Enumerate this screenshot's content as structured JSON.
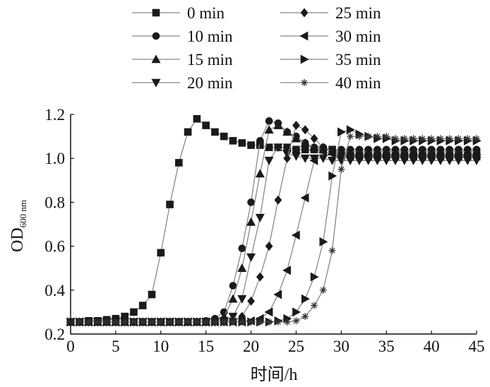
{
  "chart_data": {
    "type": "line",
    "xlabel": "时间/h",
    "ylabel_main": "OD",
    "ylabel_sub": "600 nm",
    "xlim": [
      0,
      45
    ],
    "ylim": [
      0.2,
      1.2
    ],
    "xticks": [
      "0",
      "5",
      "10",
      "15",
      "20",
      "25",
      "30",
      "35",
      "40",
      "45"
    ],
    "yticks": [
      "0.2",
      "0.4",
      "0.6",
      "0.8",
      "1.0",
      "1.2"
    ],
    "grid": false,
    "legend_position": "top",
    "x": [
      0,
      1,
      2,
      3,
      4,
      5,
      6,
      7,
      8,
      9,
      10,
      11,
      12,
      13,
      14,
      15,
      16,
      17,
      18,
      19,
      20,
      21,
      22,
      23,
      24,
      25,
      26,
      27,
      28,
      29,
      30,
      31,
      32,
      33,
      34,
      35,
      36,
      37,
      38,
      39,
      40,
      41,
      42,
      43,
      44,
      45
    ],
    "series": [
      {
        "name": "0 min",
        "marker": "square",
        "values": [
          0.255,
          0.255,
          0.26,
          0.26,
          0.265,
          0.27,
          0.28,
          0.3,
          0.33,
          0.38,
          0.57,
          0.79,
          0.98,
          1.12,
          1.18,
          1.15,
          1.12,
          1.1,
          1.08,
          1.07,
          1.06,
          1.06,
          1.05,
          1.05,
          1.05,
          1.04,
          1.04,
          1.04,
          1.04,
          1.04,
          1.03,
          1.03,
          1.03,
          1.03,
          1.03,
          1.03,
          1.03,
          1.03,
          1.03,
          1.03,
          1.03,
          1.03,
          1.03,
          1.03,
          1.03,
          1.03
        ]
      },
      {
        "name": "10 min",
        "marker": "circle",
        "values": [
          0.255,
          0.255,
          0.255,
          0.255,
          0.255,
          0.255,
          0.255,
          0.255,
          0.255,
          0.255,
          0.255,
          0.255,
          0.255,
          0.255,
          0.255,
          0.26,
          0.27,
          0.3,
          0.42,
          0.59,
          0.8,
          1.08,
          1.17,
          1.16,
          1.12,
          1.1,
          1.07,
          1.05,
          1.05,
          1.04,
          1.04,
          1.04,
          1.04,
          1.04,
          1.04,
          1.04,
          1.04,
          1.04,
          1.04,
          1.04,
          1.04,
          1.04,
          1.04,
          1.04,
          1.04,
          1.04
        ]
      },
      {
        "name": "15 min",
        "marker": "triangle-up",
        "values": [
          0.255,
          0.255,
          0.255,
          0.255,
          0.255,
          0.255,
          0.255,
          0.255,
          0.255,
          0.255,
          0.255,
          0.255,
          0.255,
          0.255,
          0.255,
          0.255,
          0.26,
          0.28,
          0.36,
          0.5,
          0.71,
          0.93,
          1.13,
          1.15,
          1.12,
          1.09,
          1.07,
          1.05,
          1.04,
          1.03,
          1.03,
          1.03,
          1.03,
          1.03,
          1.03,
          1.03,
          1.03,
          1.03,
          1.03,
          1.03,
          1.03,
          1.03,
          1.03,
          1.03,
          1.03,
          1.03
        ]
      },
      {
        "name": "20 min",
        "marker": "triangle-down",
        "values": [
          0.255,
          0.255,
          0.255,
          0.255,
          0.255,
          0.255,
          0.255,
          0.255,
          0.255,
          0.255,
          0.255,
          0.255,
          0.255,
          0.255,
          0.255,
          0.255,
          0.255,
          0.26,
          0.28,
          0.36,
          0.55,
          0.73,
          0.99,
          1.05,
          1.02,
          1.01,
          1.0,
          1.0,
          1.0,
          0.99,
          0.99,
          0.99,
          0.99,
          0.99,
          0.99,
          0.99,
          0.99,
          0.99,
          0.99,
          0.99,
          0.99,
          0.99,
          0.99,
          0.99,
          0.99,
          0.99
        ]
      },
      {
        "name": "25 min",
        "marker": "diamond",
        "values": [
          0.255,
          0.255,
          0.255,
          0.255,
          0.255,
          0.255,
          0.255,
          0.255,
          0.255,
          0.255,
          0.255,
          0.255,
          0.255,
          0.255,
          0.255,
          0.255,
          0.255,
          0.255,
          0.26,
          0.28,
          0.35,
          0.46,
          0.6,
          0.81,
          1.0,
          1.15,
          1.13,
          1.09,
          1.05,
          1.03,
          1.02,
          1.02,
          1.02,
          1.02,
          1.02,
          1.02,
          1.02,
          1.02,
          1.02,
          1.02,
          1.02,
          1.02,
          1.02,
          1.02,
          1.02,
          1.02
        ]
      },
      {
        "name": "30 min",
        "marker": "triangle-left",
        "values": [
          0.255,
          0.255,
          0.255,
          0.255,
          0.255,
          0.255,
          0.255,
          0.255,
          0.255,
          0.255,
          0.255,
          0.255,
          0.255,
          0.255,
          0.255,
          0.255,
          0.255,
          0.255,
          0.255,
          0.255,
          0.26,
          0.27,
          0.3,
          0.38,
          0.49,
          0.65,
          0.82,
          0.99,
          1.03,
          1.02,
          1.01,
          1.01,
          1.01,
          1.01,
          1.01,
          1.01,
          1.01,
          1.01,
          1.01,
          1.01,
          1.01,
          1.01,
          1.01,
          1.01,
          1.01,
          1.01
        ]
      },
      {
        "name": "35 min",
        "marker": "triangle-right",
        "values": [
          0.255,
          0.255,
          0.255,
          0.255,
          0.255,
          0.255,
          0.255,
          0.255,
          0.255,
          0.255,
          0.255,
          0.255,
          0.255,
          0.255,
          0.255,
          0.255,
          0.255,
          0.255,
          0.255,
          0.255,
          0.255,
          0.255,
          0.255,
          0.26,
          0.27,
          0.3,
          0.36,
          0.46,
          0.62,
          0.92,
          1.12,
          1.13,
          1.11,
          1.1,
          1.09,
          1.09,
          1.08,
          1.08,
          1.08,
          1.08,
          1.08,
          1.08,
          1.08,
          1.08,
          1.08,
          1.08
        ]
      },
      {
        "name": "40 min",
        "marker": "star",
        "values": [
          0.255,
          0.255,
          0.255,
          0.255,
          0.255,
          0.255,
          0.255,
          0.255,
          0.255,
          0.255,
          0.255,
          0.255,
          0.255,
          0.255,
          0.255,
          0.255,
          0.255,
          0.255,
          0.255,
          0.255,
          0.255,
          0.255,
          0.255,
          0.255,
          0.255,
          0.26,
          0.28,
          0.33,
          0.4,
          0.58,
          0.95,
          1.1,
          1.1,
          1.1,
          1.1,
          1.1,
          1.09,
          1.09,
          1.09,
          1.09,
          1.09,
          1.09,
          1.09,
          1.09,
          1.09,
          1.09
        ]
      }
    ]
  }
}
